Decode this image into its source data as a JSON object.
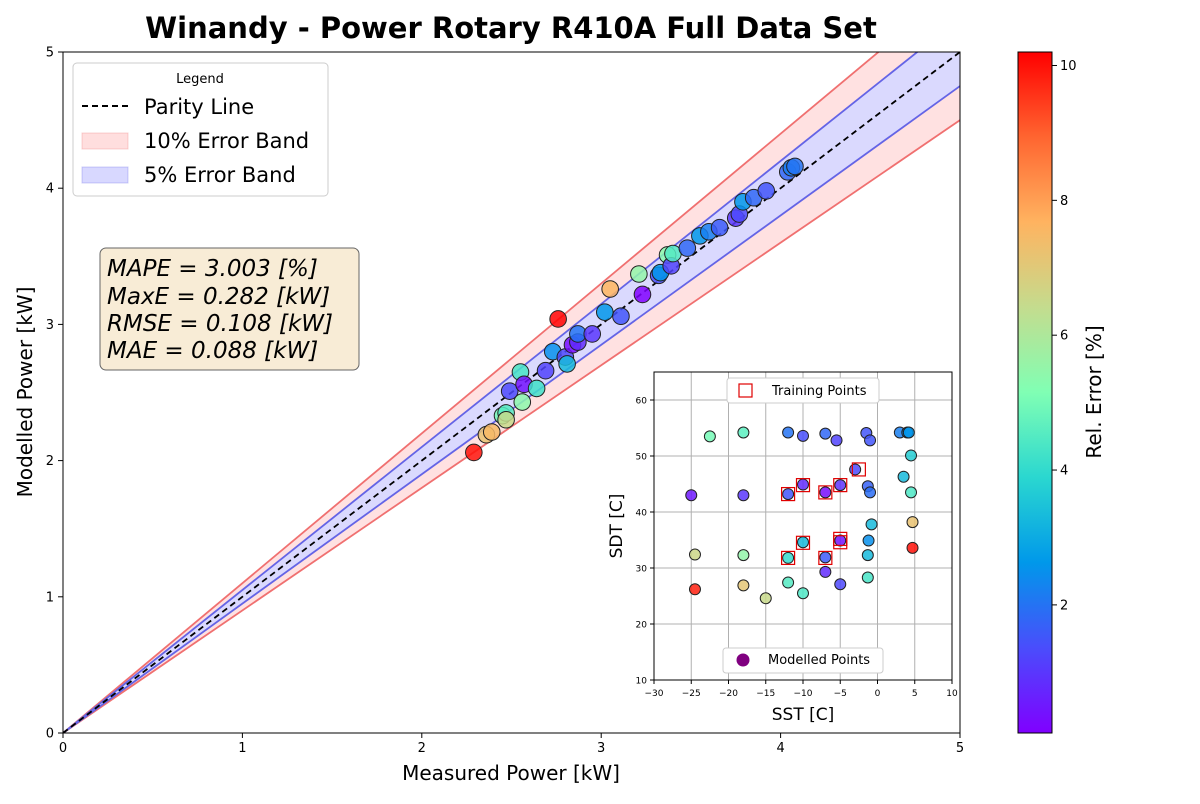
{
  "colors": {
    "band10_fill": "#ffdede",
    "band10_line": "#f07070",
    "band5_fill": "#d8d8ff",
    "band5_line": "#6464e6",
    "parity": "#000000",
    "training_marker": "#e00000",
    "modelled_marker": "#800080"
  },
  "colorbar": {
    "label": "Rel. Error [%]",
    "range": [
      0.1,
      10.2
    ],
    "ticks": [
      "2",
      "4",
      "6",
      "8",
      "10"
    ],
    "colormap": "rainbow"
  },
  "stats": {
    "lines": [
      "MAPE = 3.003 [%]",
      "MaxE = 0.282 [kW]",
      "RMSE = 0.108 [kW]",
      "MAE = 0.088 [kW]"
    ]
  },
  "chart_data": [
    {
      "type": "scatter",
      "title": "Winandy - Power Rotary R410A Full Data Set",
      "xlabel": "Measured Power [kW]",
      "ylabel": "Modelled Power [kW]",
      "xlim": [
        0,
        5
      ],
      "ylim": [
        0,
        5
      ],
      "xticks": [
        "0",
        "1",
        "2",
        "3",
        "4",
        "5"
      ],
      "yticks": [
        "0",
        "1",
        "2",
        "3",
        "4",
        "5"
      ],
      "grid": false,
      "legend": {
        "title": "Legend",
        "placement": "top-left",
        "entries": [
          "Parity Line",
          "10% Error Band",
          "5% Error Band"
        ]
      },
      "points": [
        {
          "x": 2.29,
          "y": 2.06,
          "e": 10.0
        },
        {
          "x": 2.36,
          "y": 2.19,
          "e": 7.2
        },
        {
          "x": 2.39,
          "y": 2.21,
          "e": 7.5
        },
        {
          "x": 2.45,
          "y": 2.33,
          "e": 5.0
        },
        {
          "x": 2.47,
          "y": 2.35,
          "e": 4.5
        },
        {
          "x": 2.47,
          "y": 2.3,
          "e": 6.5
        },
        {
          "x": 2.49,
          "y": 2.51,
          "e": 1.3
        },
        {
          "x": 2.55,
          "y": 2.65,
          "e": 4.3
        },
        {
          "x": 2.57,
          "y": 2.56,
          "e": 0.4
        },
        {
          "x": 2.56,
          "y": 2.43,
          "e": 5.4
        },
        {
          "x": 2.64,
          "y": 2.53,
          "e": 4.2
        },
        {
          "x": 2.69,
          "y": 2.66,
          "e": 1.2
        },
        {
          "x": 2.73,
          "y": 2.8,
          "e": 2.5
        },
        {
          "x": 2.76,
          "y": 3.04,
          "e": 10.2
        },
        {
          "x": 2.8,
          "y": 2.76,
          "e": 1.3
        },
        {
          "x": 2.81,
          "y": 2.71,
          "e": 3.3
        },
        {
          "x": 2.84,
          "y": 2.85,
          "e": 0.3
        },
        {
          "x": 2.87,
          "y": 2.87,
          "e": 0.8
        },
        {
          "x": 2.87,
          "y": 2.93,
          "e": 2.0
        },
        {
          "x": 2.95,
          "y": 2.93,
          "e": 1.0
        },
        {
          "x": 3.02,
          "y": 3.09,
          "e": 2.6
        },
        {
          "x": 3.05,
          "y": 3.26,
          "e": 7.6
        },
        {
          "x": 3.11,
          "y": 3.06,
          "e": 1.5
        },
        {
          "x": 3.21,
          "y": 3.37,
          "e": 5.5
        },
        {
          "x": 3.23,
          "y": 3.22,
          "e": 0.1
        },
        {
          "x": 3.32,
          "y": 3.36,
          "e": 1.4
        },
        {
          "x": 3.33,
          "y": 3.38,
          "e": 2.6
        },
        {
          "x": 3.37,
          "y": 3.51,
          "e": 5.3
        },
        {
          "x": 3.39,
          "y": 3.43,
          "e": 1.2
        },
        {
          "x": 3.4,
          "y": 3.52,
          "e": 4.5
        },
        {
          "x": 3.48,
          "y": 3.56,
          "e": 1.8
        },
        {
          "x": 3.55,
          "y": 3.65,
          "e": 2.6
        },
        {
          "x": 3.6,
          "y": 3.68,
          "e": 2.2
        },
        {
          "x": 3.66,
          "y": 3.71,
          "e": 1.6
        },
        {
          "x": 3.75,
          "y": 3.78,
          "e": 1.0
        },
        {
          "x": 3.77,
          "y": 3.81,
          "e": 1.3
        },
        {
          "x": 3.79,
          "y": 3.9,
          "e": 2.6
        },
        {
          "x": 3.85,
          "y": 3.93,
          "e": 1.8
        },
        {
          "x": 3.92,
          "y": 3.98,
          "e": 1.5
        },
        {
          "x": 4.04,
          "y": 4.12,
          "e": 1.8
        },
        {
          "x": 4.06,
          "y": 4.15,
          "e": 2.2
        },
        {
          "x": 4.08,
          "y": 4.16,
          "e": 2.0
        }
      ]
    },
    {
      "type": "scatter",
      "title": "",
      "xlabel": "SST [C]",
      "ylabel": "SDT [C]",
      "xlim": [
        -30,
        10
      ],
      "ylim": [
        10,
        65
      ],
      "xticks": [
        "−30",
        "−25",
        "−20",
        "−15",
        "−10",
        "−5",
        "0",
        "5",
        "10"
      ],
      "yticks": [
        "10",
        "20",
        "30",
        "40",
        "50",
        "60"
      ],
      "grid": true,
      "legend_top": {
        "label": "Training Points",
        "placement": "top-center"
      },
      "legend_bottom": {
        "label": "Modelled Points",
        "placement": "bottom-center"
      },
      "training_points": [
        {
          "x": -12,
          "y": 43.2
        },
        {
          "x": -10,
          "y": 44.8
        },
        {
          "x": -7,
          "y": 43.5
        },
        {
          "x": -5,
          "y": 44.8
        },
        {
          "x": -2.5,
          "y": 47.6
        },
        {
          "x": -12,
          "y": 31.8
        },
        {
          "x": -10,
          "y": 34.5
        },
        {
          "x": -7,
          "y": 31.8
        },
        {
          "x": -5,
          "y": 34.6
        },
        {
          "x": -5,
          "y": 35.2
        }
      ],
      "modelled_points": [
        {
          "x": -25,
          "y": 43,
          "e": 0.5
        },
        {
          "x": -24.5,
          "y": 32.4,
          "e": 6.6
        },
        {
          "x": -24.5,
          "y": 26.2,
          "e": 9.8
        },
        {
          "x": -22.5,
          "y": 53.5,
          "e": 5.0
        },
        {
          "x": -18,
          "y": 54.2,
          "e": 4.6
        },
        {
          "x": -18,
          "y": 43,
          "e": 1.0
        },
        {
          "x": -18,
          "y": 32.3,
          "e": 5.5
        },
        {
          "x": -18,
          "y": 26.9,
          "e": 7.1
        },
        {
          "x": -15,
          "y": 24.6,
          "e": 6.5
        },
        {
          "x": -12,
          "y": 54.2,
          "e": 2.0
        },
        {
          "x": -12,
          "y": 43.2,
          "e": 1.5
        },
        {
          "x": -12,
          "y": 31.8,
          "e": 4.0
        },
        {
          "x": -12,
          "y": 27.4,
          "e": 4.5
        },
        {
          "x": -10,
          "y": 53.6,
          "e": 1.4
        },
        {
          "x": -10,
          "y": 44.9,
          "e": 0.8
        },
        {
          "x": -10,
          "y": 34.6,
          "e": 3.3
        },
        {
          "x": -10,
          "y": 25.5,
          "e": 4.4
        },
        {
          "x": -7,
          "y": 54,
          "e": 1.8
        },
        {
          "x": -7,
          "y": 43.5,
          "e": 0.3
        },
        {
          "x": -7,
          "y": 31.9,
          "e": 1.6
        },
        {
          "x": -7,
          "y": 29.3,
          "e": 0.8
        },
        {
          "x": -5.5,
          "y": 52.8,
          "e": 1.2
        },
        {
          "x": -5,
          "y": 44.8,
          "e": 0.9
        },
        {
          "x": -5,
          "y": 34.9,
          "e": 0.4
        },
        {
          "x": -5,
          "y": 27.1,
          "e": 1.3
        },
        {
          "x": -3,
          "y": 47.6,
          "e": 1.3
        },
        {
          "x": -1.5,
          "y": 54.1,
          "e": 1.5
        },
        {
          "x": -1,
          "y": 52.8,
          "e": 1.5
        },
        {
          "x": -1.3,
          "y": 44.6,
          "e": 1.7
        },
        {
          "x": -1,
          "y": 43.5,
          "e": 1.9
        },
        {
          "x": -1.2,
          "y": 34.9,
          "e": 2.5
        },
        {
          "x": -1.3,
          "y": 32.3,
          "e": 3.3
        },
        {
          "x": -1.3,
          "y": 28.3,
          "e": 4.3
        },
        {
          "x": -0.8,
          "y": 37.8,
          "e": 3.3
        },
        {
          "x": 3,
          "y": 54.2,
          "e": 2.2
        },
        {
          "x": 4,
          "y": 54.2,
          "e": 2.4
        },
        {
          "x": 4.2,
          "y": 54.2,
          "e": 2.6
        },
        {
          "x": 3.5,
          "y": 46.3,
          "e": 3.3
        },
        {
          "x": 4.5,
          "y": 50.1,
          "e": 3.7
        },
        {
          "x": 4.5,
          "y": 43.5,
          "e": 4.4
        },
        {
          "x": 4.7,
          "y": 38.2,
          "e": 7.2
        },
        {
          "x": 4.7,
          "y": 33.6,
          "e": 10.0
        }
      ]
    }
  ]
}
